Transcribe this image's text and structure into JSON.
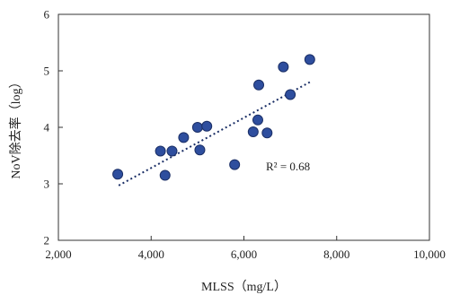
{
  "chart_data": {
    "type": "scatter",
    "title": "",
    "xlabel": "MLSS（mg/L）",
    "ylabel": "NoV除去率（log）",
    "xlim": [
      2000,
      10000
    ],
    "ylim": [
      2,
      6
    ],
    "x_ticks": [
      2000,
      4000,
      6000,
      8000,
      10000
    ],
    "x_tick_labels": [
      "2,000",
      "4,000",
      "6,000",
      "8,000",
      "10,000"
    ],
    "y_ticks": [
      2,
      3,
      4,
      5,
      6
    ],
    "y_tick_labels": [
      "2",
      "3",
      "4",
      "5",
      "6"
    ],
    "grid": false,
    "legend": "none",
    "marker_color": "#2E4E9E",
    "marker_edge_color": "#1B2F66",
    "trendline": {
      "type": "linear",
      "style": "dotted",
      "color": "#1B2F66",
      "x_range": [
        3300,
        7420
      ],
      "y_range": [
        2.97,
        4.8
      ]
    },
    "r_squared_label": "R² = 0.68",
    "x": [
      3280,
      4200,
      4300,
      4450,
      4700,
      5000,
      5050,
      5200,
      5800,
      6200,
      6300,
      6320,
      6500,
      6850,
      7000,
      7420
    ],
    "y": [
      3.17,
      3.58,
      3.15,
      3.58,
      3.82,
      4.0,
      3.6,
      4.02,
      3.34,
      3.92,
      4.13,
      4.75,
      3.9,
      5.07,
      4.58,
      5.2
    ]
  }
}
